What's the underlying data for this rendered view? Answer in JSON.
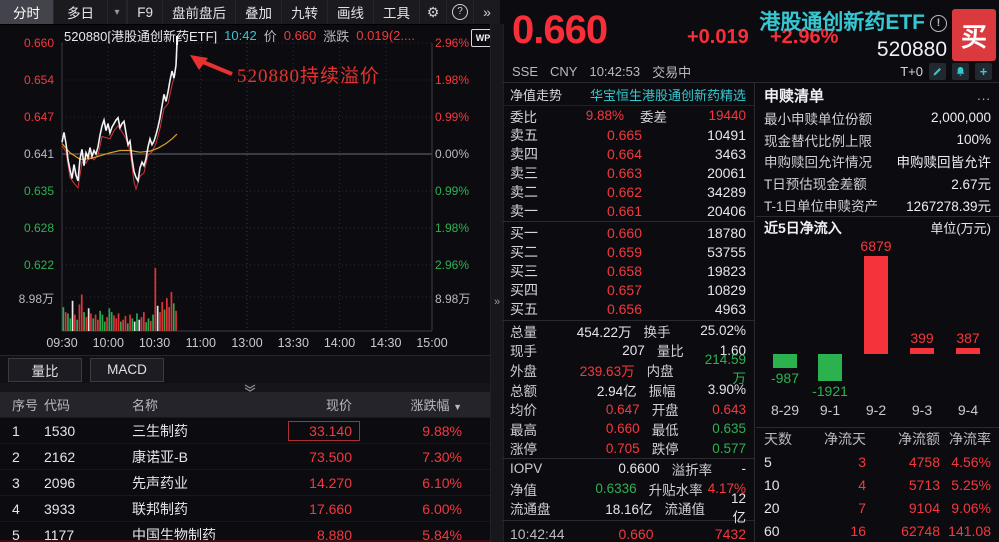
{
  "toolbar": {
    "tabs": [
      {
        "label": "分时",
        "active": true
      },
      {
        "label": "多日",
        "active": false
      }
    ],
    "dropdown_caret": "▾",
    "buttons": [
      "F9",
      "盘前盘后",
      "叠加",
      "九转",
      "画线",
      "工具"
    ],
    "gear": "⚙",
    "help": "?",
    "expand": "»"
  },
  "chart": {
    "header": {
      "title": "520880[港股通创新药ETF]",
      "time": "10:42",
      "price_label": "价",
      "price": "0.660",
      "change_label": "涨跌",
      "change": "0.019(2....",
      "wp_badge": "WP"
    },
    "annotation": "520880持续溢价",
    "y_left": [
      {
        "label": "0.660",
        "tone": "up"
      },
      {
        "label": "0.654",
        "tone": "up"
      },
      {
        "label": "0.647",
        "tone": "up"
      },
      {
        "label": "0.641",
        "tone": "gray"
      },
      {
        "label": "0.635",
        "tone": "down"
      },
      {
        "label": "0.628",
        "tone": "down"
      },
      {
        "label": "0.622",
        "tone": "down"
      }
    ],
    "y_right": [
      {
        "label": "2.96%",
        "tone": "up"
      },
      {
        "label": "1.98%",
        "tone": "up"
      },
      {
        "label": "0.99%",
        "tone": "up"
      },
      {
        "label": "0.00%",
        "tone": "gray"
      },
      {
        "label": "0.99%",
        "tone": "down"
      },
      {
        "label": "1.98%",
        "tone": "down"
      },
      {
        "label": "2.96%",
        "tone": "down"
      }
    ],
    "vol_left": "8.98万",
    "vol_right": "8.98万",
    "x_ticks": [
      "09:30",
      "10:00",
      "10:30",
      "11:00",
      "13:00",
      "13:30",
      "14:00",
      "14:30",
      "15:00"
    ]
  },
  "chart_data": [
    {
      "type": "line",
      "title": "520880[港股通创新药ETF] 分时走势",
      "prev_close": 0.641,
      "open": 0.643,
      "high": 0.66,
      "low": 0.635,
      "last": 0.66,
      "last_time": "10:42",
      "ylim": [
        0.622,
        0.66
      ],
      "y_ticks_price": [
        0.66,
        0.654,
        0.647,
        0.641,
        0.635,
        0.628,
        0.622
      ],
      "y_ticks_pct": [
        "2.96%",
        "1.98%",
        "0.99%",
        "0.00%",
        "-0.99%",
        "-1.98%",
        "-2.96%"
      ],
      "x_ticks": [
        "09:30",
        "10:00",
        "10:30",
        "11:00",
        "13:00",
        "13:30",
        "14:00",
        "14:30",
        "15:00"
      ],
      "volume_axis_label": "8.98万",
      "price_line": [
        [
          0,
          0.643
        ],
        [
          2,
          0.6447
        ],
        [
          4,
          0.6428
        ],
        [
          6,
          0.64
        ],
        [
          8,
          0.6383
        ],
        [
          10,
          0.6368
        ],
        [
          12,
          0.6392
        ],
        [
          14,
          0.6374
        ],
        [
          16,
          0.6364
        ],
        [
          18,
          0.6402
        ],
        [
          20,
          0.6418
        ],
        [
          22,
          0.639
        ],
        [
          24,
          0.6412
        ],
        [
          26,
          0.6404
        ],
        [
          28,
          0.6421
        ],
        [
          30,
          0.6406
        ],
        [
          32,
          0.6416
        ],
        [
          34,
          0.641
        ],
        [
          36,
          0.6422
        ],
        [
          38,
          0.6442
        ],
        [
          40,
          0.6458
        ],
        [
          42,
          0.6468
        ],
        [
          44,
          0.645
        ],
        [
          46,
          0.6462
        ],
        [
          48,
          0.6446
        ],
        [
          50,
          0.6456
        ],
        [
          52,
          0.6462
        ],
        [
          54,
          0.6468
        ],
        [
          56,
          0.6472
        ],
        [
          58,
          0.6455
        ],
        [
          60,
          0.6462
        ],
        [
          62,
          0.6466
        ],
        [
          64,
          0.6446
        ],
        [
          66,
          0.6426
        ],
        [
          68,
          0.6432
        ],
        [
          70,
          0.6402
        ],
        [
          72,
          0.638
        ],
        [
          74,
          0.637
        ],
        [
          76,
          0.6364
        ],
        [
          78,
          0.6386
        ],
        [
          80,
          0.6396
        ],
        [
          82,
          0.639
        ],
        [
          84,
          0.6402
        ],
        [
          86,
          0.6422
        ],
        [
          88,
          0.6436
        ],
        [
          90,
          0.6426
        ],
        [
          92,
          0.6432
        ],
        [
          94,
          0.6443
        ],
        [
          96,
          0.6456
        ],
        [
          98,
          0.6472
        ],
        [
          100,
          0.6492
        ],
        [
          102,
          0.6512
        ],
        [
          104,
          0.65
        ],
        [
          106,
          0.6516
        ],
        [
          108,
          0.6536
        ],
        [
          110,
          0.6552
        ],
        [
          112,
          0.654
        ],
        [
          114,
          0.6562
        ],
        [
          115,
          0.66
        ]
      ],
      "avg_line": [
        [
          0,
          0.6428
        ],
        [
          8,
          0.6412
        ],
        [
          18,
          0.6401
        ],
        [
          28,
          0.6402
        ],
        [
          38,
          0.6407
        ],
        [
          48,
          0.6412
        ],
        [
          58,
          0.6416
        ],
        [
          68,
          0.6416
        ],
        [
          78,
          0.6413
        ],
        [
          88,
          0.6415
        ],
        [
          96,
          0.642
        ],
        [
          104,
          0.6428
        ],
        [
          110,
          0.6436
        ],
        [
          115,
          0.6444
        ]
      ],
      "low_line": [
        [
          0,
          0.6424
        ],
        [
          4,
          0.6414
        ],
        [
          8,
          0.637
        ],
        [
          12,
          0.636
        ],
        [
          16,
          0.6352
        ],
        [
          20,
          0.6396
        ],
        [
          24,
          0.6394
        ],
        [
          28,
          0.6406
        ],
        [
          32,
          0.64
        ],
        [
          36,
          0.6408
        ],
        [
          40,
          0.644
        ],
        [
          44,
          0.6438
        ],
        [
          48,
          0.6436
        ],
        [
          52,
          0.645
        ],
        [
          56,
          0.6458
        ],
        [
          60,
          0.6448
        ],
        [
          64,
          0.6436
        ],
        [
          68,
          0.6416
        ],
        [
          72,
          0.6362
        ],
        [
          74,
          0.635
        ],
        [
          78,
          0.6372
        ],
        [
          82,
          0.6378
        ],
        [
          86,
          0.6408
        ],
        [
          90,
          0.6414
        ],
        [
          94,
          0.6428
        ],
        [
          98,
          0.6454
        ],
        [
          102,
          0.6488
        ],
        [
          106,
          0.6496
        ],
        [
          110,
          0.6528
        ],
        [
          113,
          0.6546
        ],
        [
          115,
          0.658
        ]
      ],
      "volume_bars": [
        [
          38,
          "g"
        ],
        [
          30,
          "r"
        ],
        [
          28,
          "g"
        ],
        [
          20,
          "g"
        ],
        [
          48,
          "w"
        ],
        [
          26,
          "r"
        ],
        [
          18,
          "g"
        ],
        [
          42,
          "r"
        ],
        [
          58,
          "r"
        ],
        [
          30,
          "g"
        ],
        [
          22,
          "r"
        ],
        [
          36,
          "w"
        ],
        [
          28,
          "r"
        ],
        [
          20,
          "g"
        ],
        [
          26,
          "r"
        ],
        [
          18,
          "r"
        ],
        [
          32,
          "g"
        ],
        [
          26,
          "g"
        ],
        [
          15,
          "g"
        ],
        [
          22,
          "r"
        ],
        [
          36,
          "g"
        ],
        [
          30,
          "g"
        ],
        [
          25,
          "r"
        ],
        [
          20,
          "r"
        ],
        [
          28,
          "r"
        ],
        [
          15,
          "g"
        ],
        [
          18,
          "r"
        ],
        [
          24,
          "r"
        ],
        [
          12,
          "g"
        ],
        [
          26,
          "r"
        ],
        [
          20,
          "g"
        ],
        [
          15,
          "w"
        ],
        [
          28,
          "g"
        ],
        [
          18,
          "w"
        ],
        [
          22,
          "r"
        ],
        [
          30,
          "r"
        ],
        [
          14,
          "g"
        ],
        [
          20,
          "g"
        ],
        [
          16,
          "r"
        ],
        [
          26,
          "g"
        ],
        [
          100,
          "r"
        ],
        [
          40,
          "w"
        ],
        [
          30,
          "r"
        ],
        [
          46,
          "r"
        ],
        [
          34,
          "g"
        ],
        [
          52,
          "r"
        ],
        [
          38,
          "r"
        ],
        [
          62,
          "r"
        ],
        [
          44,
          "g"
        ],
        [
          32,
          "r"
        ]
      ]
    },
    {
      "type": "bar",
      "title": "近5日净流入",
      "unit_label": "单位(万元)",
      "categories": [
        "8-29",
        "9-1",
        "9-2",
        "9-3",
        "9-4"
      ],
      "values": [
        -987,
        -1921,
        6879,
        399,
        387
      ],
      "up_color": "#f5333a",
      "down_color": "#2bb24f",
      "highlighted_categories": [
        "9-2",
        "9-3",
        "9-4"
      ]
    }
  ],
  "subtabs": [
    "量比",
    "MACD"
  ],
  "stock_table": {
    "headers": [
      "序号",
      "代码",
      "名称",
      "现价",
      "涨跌幅"
    ],
    "sort_caret": "▼",
    "rows": [
      {
        "idx": "1",
        "code": "1530",
        "name": "三生制药",
        "price": "33.140",
        "chg": "9.88%",
        "boxed": true
      },
      {
        "idx": "2",
        "code": "2162",
        "name": "康诺亚-B",
        "price": "73.500",
        "chg": "7.30%",
        "boxed": false
      },
      {
        "idx": "3",
        "code": "2096",
        "name": "先声药业",
        "price": "14.270",
        "chg": "6.10%",
        "boxed": false
      },
      {
        "idx": "4",
        "code": "3933",
        "name": "联邦制药",
        "price": "17.660",
        "chg": "6.00%",
        "boxed": false
      },
      {
        "idx": "5",
        "code": "1177",
        "name": "中国生物制药",
        "price": "8.880",
        "chg": "5.84%",
        "boxed": false
      }
    ]
  },
  "quote": {
    "price": "0.660",
    "change": "+0.019",
    "pct": "+2.96%",
    "name": "港股通创新药ETF",
    "code": "520880",
    "buy_label": "买",
    "exchange": "SSE",
    "currency": "CNY",
    "time": "10:42:53",
    "status": "交易中",
    "t0": "T+0",
    "nav_label": "净值走势",
    "nav_link": "华宝恒生港股通创新药精选",
    "weibi_label": "委比",
    "weibi": "9.88%",
    "weicha_label": "委差",
    "weicha": "19440",
    "book": {
      "sells": [
        {
          "label": "卖五",
          "price": "0.665",
          "qty": "10491"
        },
        {
          "label": "卖四",
          "price": "0.664",
          "qty": "3463"
        },
        {
          "label": "卖三",
          "price": "0.663",
          "qty": "20061"
        },
        {
          "label": "卖二",
          "price": "0.662",
          "qty": "34289"
        },
        {
          "label": "卖一",
          "price": "0.661",
          "qty": "20406"
        }
      ],
      "buys": [
        {
          "label": "买一",
          "price": "0.660",
          "qty": "18780"
        },
        {
          "label": "买二",
          "price": "0.659",
          "qty": "53755"
        },
        {
          "label": "买三",
          "price": "0.658",
          "qty": "19823"
        },
        {
          "label": "买四",
          "price": "0.657",
          "qty": "10829"
        },
        {
          "label": "买五",
          "price": "0.656",
          "qty": "4963"
        }
      ]
    },
    "stats1": [
      {
        "l1": "总量",
        "v1": "454.22万",
        "t1": "flat",
        "l2": "换手",
        "v2": "25.02%",
        "t2": "flat"
      },
      {
        "l1": "现手",
        "v1": "207",
        "t1": "flat",
        "l2": "量比",
        "v2": "1.60",
        "t2": "flat"
      },
      {
        "l1": "外盘",
        "v1": "239.63万",
        "t1": "up",
        "l2": "内盘",
        "v2": "214.59万",
        "t2": "down"
      },
      {
        "l1": "总额",
        "v1": "2.94亿",
        "t1": "flat",
        "l2": "振幅",
        "v2": "3.90%",
        "t2": "flat"
      },
      {
        "l1": "均价",
        "v1": "0.647",
        "t1": "up",
        "l2": "开盘",
        "v2": "0.643",
        "t2": "up"
      },
      {
        "l1": "最高",
        "v1": "0.660",
        "t1": "up",
        "l2": "最低",
        "v2": "0.635",
        "t2": "down"
      },
      {
        "l1": "涨停",
        "v1": "0.705",
        "t1": "up",
        "l2": "跌停",
        "v2": "0.577",
        "t2": "down"
      }
    ],
    "stats2": [
      {
        "l1": "IOPV",
        "v1": "0.6600",
        "t1": "flat",
        "l2": "溢折率",
        "v2": "-",
        "t2": "flat"
      },
      {
        "l1": "净值",
        "v1": "0.6336",
        "t1": "down",
        "l2": "升贴水率",
        "v2": "4.17%",
        "t2": "up"
      },
      {
        "l1": "流通盘",
        "v1": "18.16亿",
        "t1": "flat",
        "l2": "流通值",
        "v2": "12亿",
        "t2": "flat"
      }
    ],
    "footer": {
      "time": "10:42:44",
      "price": "0.660",
      "vol": "7432"
    }
  },
  "subscription": {
    "title": "申赎清单",
    "more": "...",
    "rows": [
      {
        "k": "最小申赎单位份额",
        "v": "2,000,000"
      },
      {
        "k": "现金替代比例上限",
        "v": "100%"
      },
      {
        "k": "申购赎回允许情况",
        "v": "申购赎回皆允许"
      },
      {
        "k": "T日预估现金差额",
        "v": "2.67元"
      },
      {
        "k": "T-1日单位申赎资产",
        "v": "1267278.39元"
      }
    ]
  },
  "flow_table": {
    "headers": [
      "天数",
      "净流天",
      "净流额",
      "净流率"
    ],
    "rows": [
      {
        "day": "5",
        "d": "3",
        "amt": "4758",
        "rate": "4.56%"
      },
      {
        "day": "10",
        "d": "4",
        "amt": "5713",
        "rate": "5.25%"
      },
      {
        "day": "20",
        "d": "7",
        "amt": "9104",
        "rate": "9.06%"
      },
      {
        "day": "60",
        "d": "16",
        "amt": "62748",
        "rate": "141.08"
      }
    ]
  }
}
